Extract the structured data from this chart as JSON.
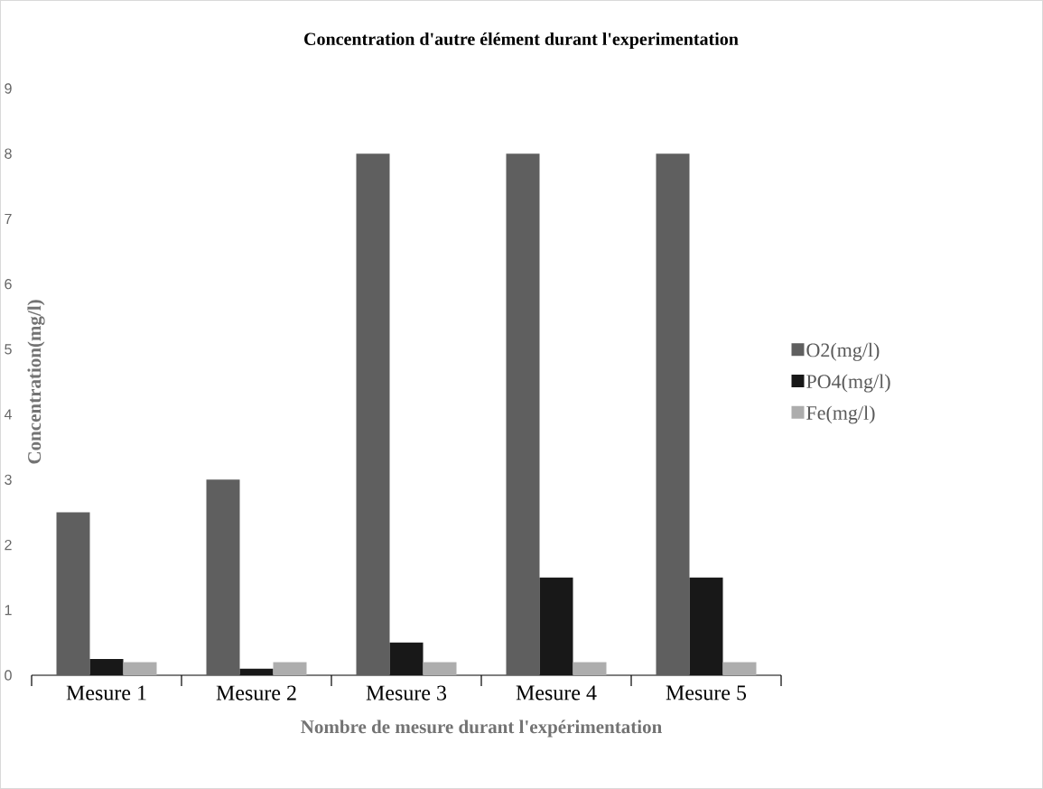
{
  "chart_data": {
    "type": "bar",
    "title": "Concentration d'autre élément durant l'experimentation",
    "xlabel": "Nombre de mesure durant l'expérimentation",
    "ylabel": "Concentration(mg/l)",
    "categories": [
      "Mesure 1",
      "Mesure 2",
      "Mesure 3",
      "Mesure 4",
      "Mesure 5"
    ],
    "series": [
      {
        "name": "O2(mg/l)",
        "color": "#5f5f5f",
        "values": [
          2.5,
          3,
          8,
          8,
          8
        ]
      },
      {
        "name": "PO4(mg/l)",
        "color": "#181818",
        "values": [
          0.25,
          0.1,
          0.5,
          1.5,
          1.5
        ]
      },
      {
        "name": "Fe(mg/l)",
        "color": "#adadad",
        "values": [
          0.2,
          0.2,
          0.2,
          0.2,
          0.2
        ]
      }
    ],
    "ylim": [
      0,
      9
    ],
    "yticks": [
      0,
      1,
      2,
      3,
      4,
      5,
      6,
      7,
      8,
      9
    ],
    "legend": "right"
  }
}
